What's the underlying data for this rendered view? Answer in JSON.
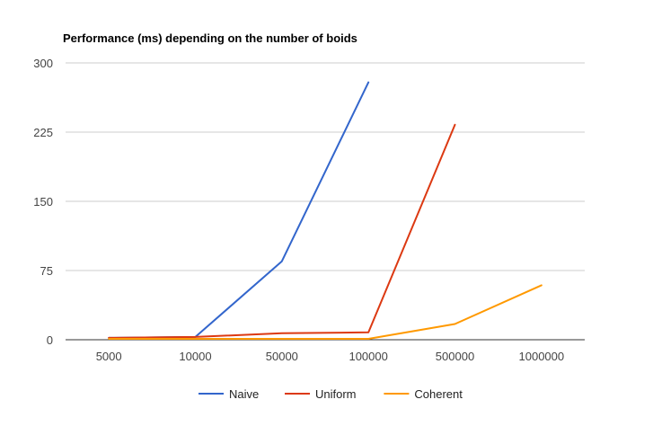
{
  "chart_data": {
    "type": "line",
    "title": "Performance (ms) depending on the number of boids",
    "xlabel": "",
    "ylabel": "",
    "categories": [
      "5000",
      "10000",
      "50000",
      "100000",
      "500000",
      "1000000"
    ],
    "ylim": [
      0,
      300
    ],
    "yticks": [
      "0",
      "75",
      "150",
      "225",
      "300"
    ],
    "grid": true,
    "legend": "bottom",
    "series": [
      {
        "name": "Naive",
        "color": "#3366cc",
        "values": [
          2,
          3,
          85,
          279,
          null,
          null
        ]
      },
      {
        "name": "Uniform",
        "color": "#dc3912",
        "values": [
          2,
          3,
          7,
          8,
          233,
          null
        ]
      },
      {
        "name": "Coherent",
        "color": "#ff9900",
        "values": [
          1,
          1,
          1,
          1,
          17,
          59
        ]
      }
    ]
  }
}
